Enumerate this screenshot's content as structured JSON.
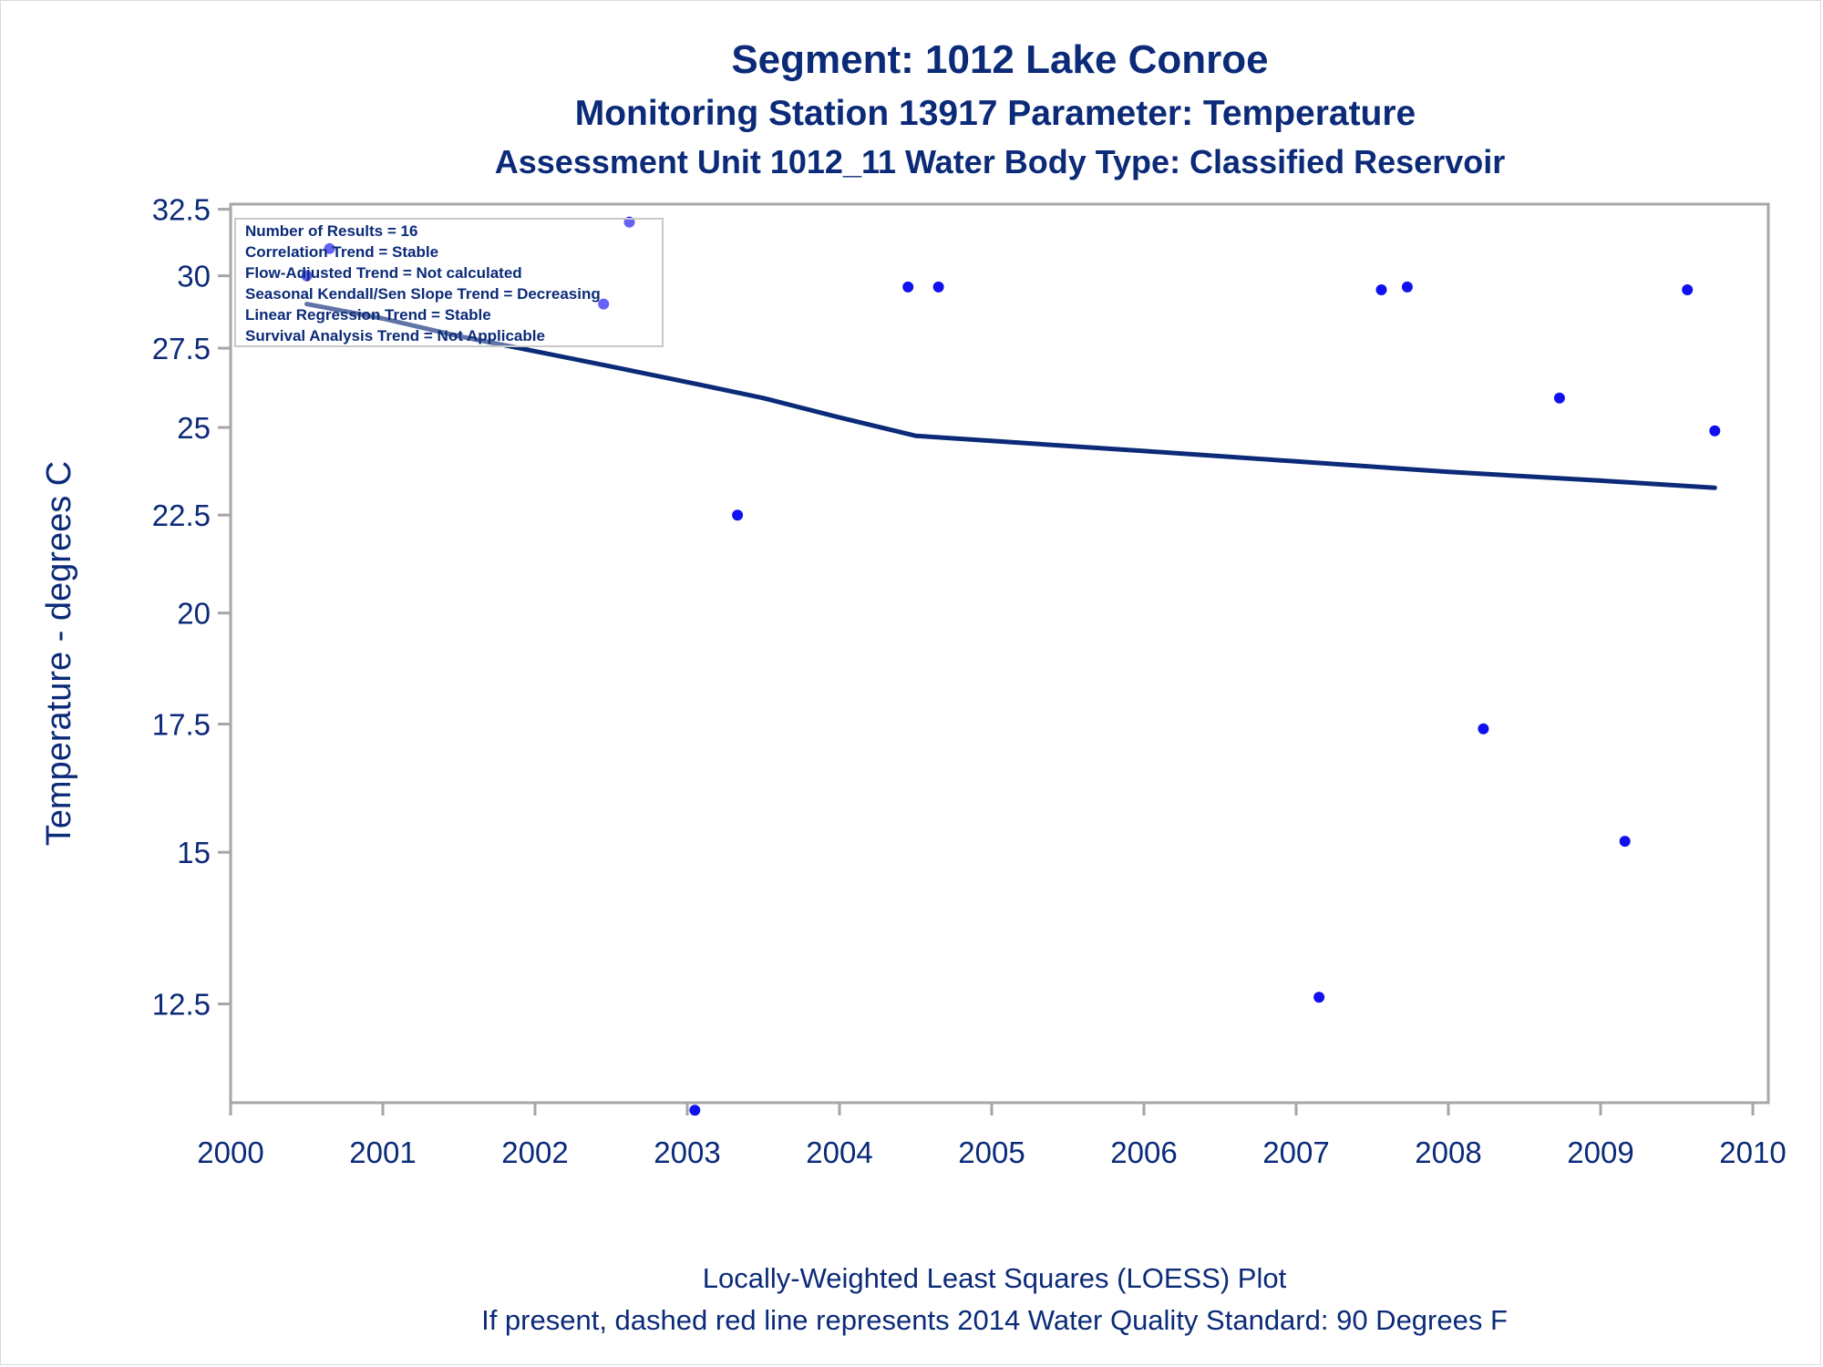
{
  "chart_data": {
    "type": "scatter",
    "title": "Segment: 1012  Lake Conroe",
    "subtitle": "Monitoring Station 13917 Parameter: Temperature",
    "subtitle2": "Assessment Unit 1012_11   Water Body Type: Classified Reservoir",
    "xlabel": "",
    "ylabel": "Temperature - degrees C",
    "x_ticks": [
      "2000",
      "2001",
      "2002",
      "2003",
      "2004",
      "2005",
      "2006",
      "2007",
      "2008",
      "2009",
      "2010"
    ],
    "y_ticks": [
      "12.5",
      "15",
      "17.5",
      "20",
      "22.5",
      "25",
      "27.5",
      "30",
      "32.5"
    ],
    "y_scale": "log",
    "xlim": [
      2000,
      2010.1
    ],
    "ylim": [
      11.1,
      32.7
    ],
    "grid": false,
    "legend_position": "top-left",
    "series": [
      {
        "type": "scatter",
        "color": "#1010f0",
        "points": [
          {
            "x": 2000.5,
            "y": 30.0
          },
          {
            "x": 2000.65,
            "y": 31.0
          },
          {
            "x": 2002.45,
            "y": 29.0
          },
          {
            "x": 2002.62,
            "y": 32.0
          },
          {
            "x": 2003.05,
            "y": 11.0
          },
          {
            "x": 2003.33,
            "y": 22.5
          },
          {
            "x": 2004.45,
            "y": 29.6
          },
          {
            "x": 2004.65,
            "y": 29.6
          },
          {
            "x": 2007.15,
            "y": 12.6
          },
          {
            "x": 2007.56,
            "y": 29.5
          },
          {
            "x": 2007.73,
            "y": 29.6
          },
          {
            "x": 2008.23,
            "y": 17.4
          },
          {
            "x": 2008.73,
            "y": 25.9
          },
          {
            "x": 2009.16,
            "y": 15.2
          },
          {
            "x": 2009.57,
            "y": 29.5
          },
          {
            "x": 2009.75,
            "y": 24.9
          }
        ]
      },
      {
        "type": "line",
        "color": "#0b2a78",
        "points": [
          {
            "x": 2000.5,
            "y": 29.0
          },
          {
            "x": 2001.0,
            "y": 28.5
          },
          {
            "x": 2001.5,
            "y": 27.9
          },
          {
            "x": 2002.0,
            "y": 27.4
          },
          {
            "x": 2002.5,
            "y": 26.9
          },
          {
            "x": 2003.0,
            "y": 26.4
          },
          {
            "x": 2003.5,
            "y": 25.9
          },
          {
            "x": 2004.0,
            "y": 25.3
          },
          {
            "x": 2004.5,
            "y": 24.75
          },
          {
            "x": 2005.0,
            "y": 24.6
          },
          {
            "x": 2006.0,
            "y": 24.3
          },
          {
            "x": 2007.0,
            "y": 24.0
          },
          {
            "x": 2008.0,
            "y": 23.7
          },
          {
            "x": 2009.0,
            "y": 23.45
          },
          {
            "x": 2009.75,
            "y": 23.25
          }
        ]
      }
    ],
    "annotation_box": [
      "Number of Results = 16",
      "Correlation Trend = Stable",
      "Flow-Adjusted Trend = Not calculated",
      "Seasonal Kendall/Sen Slope Trend = Decreasing",
      "Linear Regression Trend = Stable",
      "Survival Analysis Trend = Not Applicable"
    ],
    "footnotes": [
      "Locally-Weighted Least Squares (LOESS) Plot",
      "If present, dashed red line represents 2014 Water Quality Standard: 90   Degrees F"
    ],
    "colors": {
      "text": "#0b2a78",
      "points": "#1010f0",
      "loess_line": "#0b2a78",
      "frame": "#a6a6a6"
    }
  }
}
